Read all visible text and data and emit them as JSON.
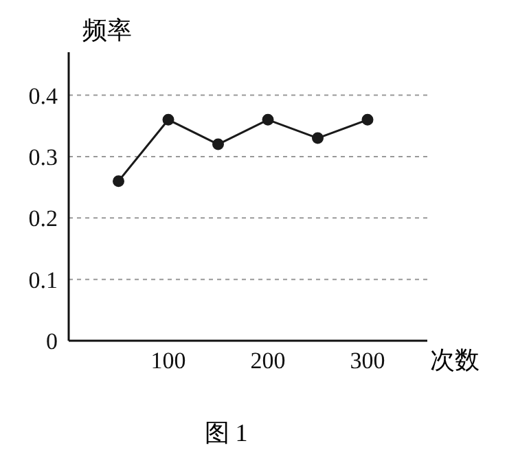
{
  "chart_data": {
    "type": "line",
    "ylabel": "频率",
    "xlabel": "次数",
    "annotations": [
      "图 1"
    ],
    "x": [
      50,
      100,
      150,
      200,
      250,
      300
    ],
    "series": [
      {
        "color": "#1a1a1a",
        "values": [
          0.26,
          0.36,
          0.32,
          0.36,
          0.33,
          0.36
        ]
      }
    ],
    "xlim": [
      0,
      360
    ],
    "xticks": [
      100,
      200,
      300
    ],
    "ylim": [
      0,
      0.47
    ],
    "yticks": [
      0,
      0.1,
      0.2,
      0.3,
      0.4
    ],
    "grid": "y",
    "marker": "circle",
    "line_style": "solid"
  }
}
